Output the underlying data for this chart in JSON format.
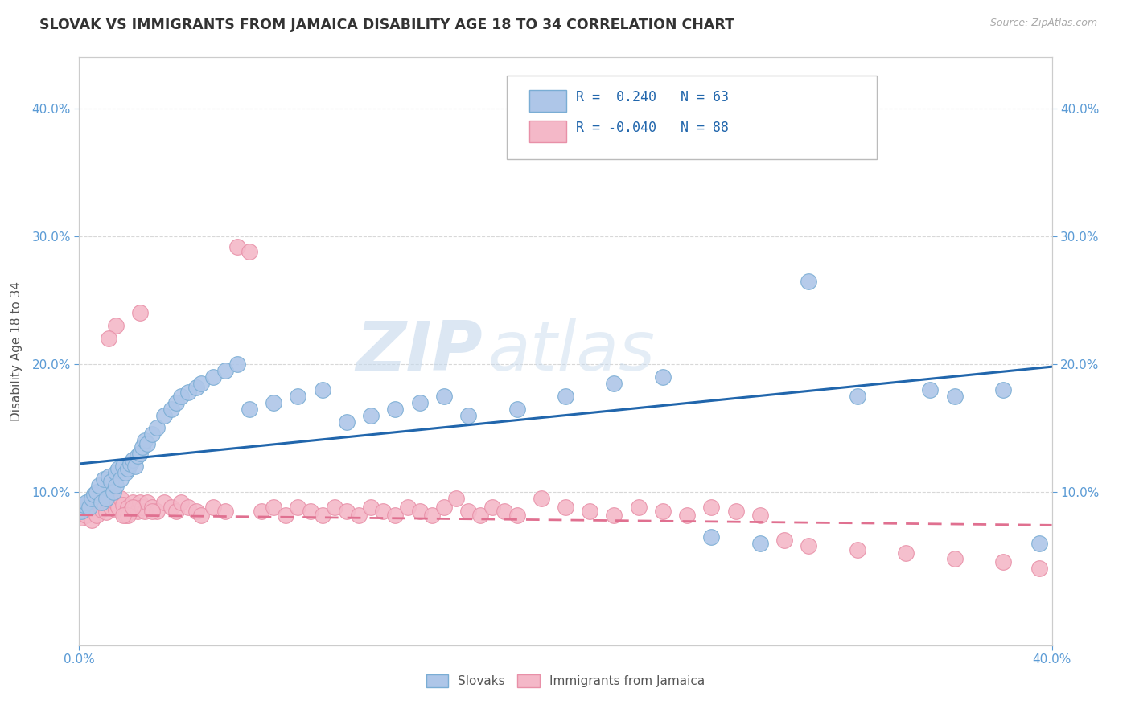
{
  "title": "SLOVAK VS IMMIGRANTS FROM JAMAICA DISABILITY AGE 18 TO 34 CORRELATION CHART",
  "source": "Source: ZipAtlas.com",
  "ylabel": "Disability Age 18 to 34",
  "xlim": [
    0.0,
    0.4
  ],
  "ylim": [
    -0.02,
    0.44
  ],
  "r_blue": 0.24,
  "n_blue": 63,
  "r_pink": -0.04,
  "n_pink": 88,
  "blue_scatter_color": "#aec6e8",
  "blue_edge_color": "#7aadd4",
  "pink_scatter_color": "#f4b8c8",
  "pink_edge_color": "#e890a8",
  "blue_line_color": "#2166ac",
  "pink_line_color": "#e07090",
  "watermark": "ZIPatlas",
  "background_color": "#ffffff",
  "grid_color": "#d8d8d8",
  "blue_line_x0": 0.0,
  "blue_line_y0": 0.122,
  "blue_line_x1": 0.4,
  "blue_line_y1": 0.198,
  "pink_line_x0": 0.0,
  "pink_line_y0": 0.082,
  "pink_line_x1": 0.4,
  "pink_line_y1": 0.074,
  "slovaks_x": [
    0.001,
    0.002,
    0.003,
    0.004,
    0.005,
    0.006,
    0.007,
    0.008,
    0.009,
    0.01,
    0.011,
    0.012,
    0.013,
    0.014,
    0.015,
    0.015,
    0.016,
    0.017,
    0.018,
    0.019,
    0.02,
    0.021,
    0.022,
    0.023,
    0.024,
    0.025,
    0.026,
    0.027,
    0.028,
    0.03,
    0.032,
    0.035,
    0.038,
    0.04,
    0.042,
    0.045,
    0.048,
    0.05,
    0.055,
    0.06,
    0.065,
    0.07,
    0.08,
    0.09,
    0.1,
    0.11,
    0.12,
    0.13,
    0.14,
    0.15,
    0.16,
    0.18,
    0.2,
    0.22,
    0.24,
    0.26,
    0.28,
    0.3,
    0.32,
    0.35,
    0.36,
    0.38,
    0.395
  ],
  "slovaks_y": [
    0.085,
    0.09,
    0.092,
    0.088,
    0.095,
    0.098,
    0.1,
    0.105,
    0.092,
    0.11,
    0.095,
    0.112,
    0.108,
    0.1,
    0.115,
    0.105,
    0.118,
    0.11,
    0.12,
    0.115,
    0.118,
    0.122,
    0.125,
    0.12,
    0.128,
    0.13,
    0.135,
    0.14,
    0.138,
    0.145,
    0.15,
    0.16,
    0.165,
    0.17,
    0.175,
    0.178,
    0.182,
    0.185,
    0.19,
    0.195,
    0.2,
    0.165,
    0.17,
    0.175,
    0.18,
    0.155,
    0.16,
    0.165,
    0.17,
    0.175,
    0.16,
    0.165,
    0.175,
    0.185,
    0.19,
    0.065,
    0.06,
    0.265,
    0.175,
    0.18,
    0.175,
    0.18,
    0.06
  ],
  "jamaica_x": [
    0.001,
    0.002,
    0.003,
    0.004,
    0.005,
    0.006,
    0.007,
    0.008,
    0.009,
    0.01,
    0.011,
    0.012,
    0.013,
    0.014,
    0.015,
    0.015,
    0.016,
    0.017,
    0.018,
    0.019,
    0.02,
    0.021,
    0.022,
    0.023,
    0.024,
    0.025,
    0.026,
    0.027,
    0.028,
    0.03,
    0.032,
    0.035,
    0.038,
    0.04,
    0.042,
    0.045,
    0.048,
    0.05,
    0.055,
    0.06,
    0.065,
    0.07,
    0.075,
    0.08,
    0.085,
    0.09,
    0.095,
    0.1,
    0.105,
    0.11,
    0.115,
    0.12,
    0.125,
    0.13,
    0.135,
    0.14,
    0.145,
    0.15,
    0.155,
    0.16,
    0.165,
    0.17,
    0.175,
    0.18,
    0.19,
    0.2,
    0.21,
    0.22,
    0.23,
    0.24,
    0.25,
    0.26,
    0.27,
    0.28,
    0.29,
    0.3,
    0.32,
    0.34,
    0.36,
    0.38,
    0.395,
    0.02,
    0.025,
    0.03,
    0.015,
    0.012,
    0.018,
    0.022
  ],
  "jamaica_y": [
    0.08,
    0.085,
    0.082,
    0.09,
    0.078,
    0.088,
    0.082,
    0.092,
    0.086,
    0.09,
    0.084,
    0.092,
    0.088,
    0.095,
    0.086,
    0.092,
    0.088,
    0.095,
    0.09,
    0.082,
    0.088,
    0.085,
    0.092,
    0.088,
    0.085,
    0.092,
    0.088,
    0.085,
    0.092,
    0.088,
    0.085,
    0.092,
    0.088,
    0.085,
    0.092,
    0.088,
    0.085,
    0.082,
    0.088,
    0.085,
    0.292,
    0.288,
    0.085,
    0.088,
    0.082,
    0.088,
    0.085,
    0.082,
    0.088,
    0.085,
    0.082,
    0.088,
    0.085,
    0.082,
    0.088,
    0.085,
    0.082,
    0.088,
    0.095,
    0.085,
    0.082,
    0.088,
    0.085,
    0.082,
    0.095,
    0.088,
    0.085,
    0.082,
    0.088,
    0.085,
    0.082,
    0.088,
    0.085,
    0.082,
    0.062,
    0.058,
    0.055,
    0.052,
    0.048,
    0.045,
    0.04,
    0.082,
    0.24,
    0.085,
    0.23,
    0.22,
    0.082,
    0.088
  ]
}
